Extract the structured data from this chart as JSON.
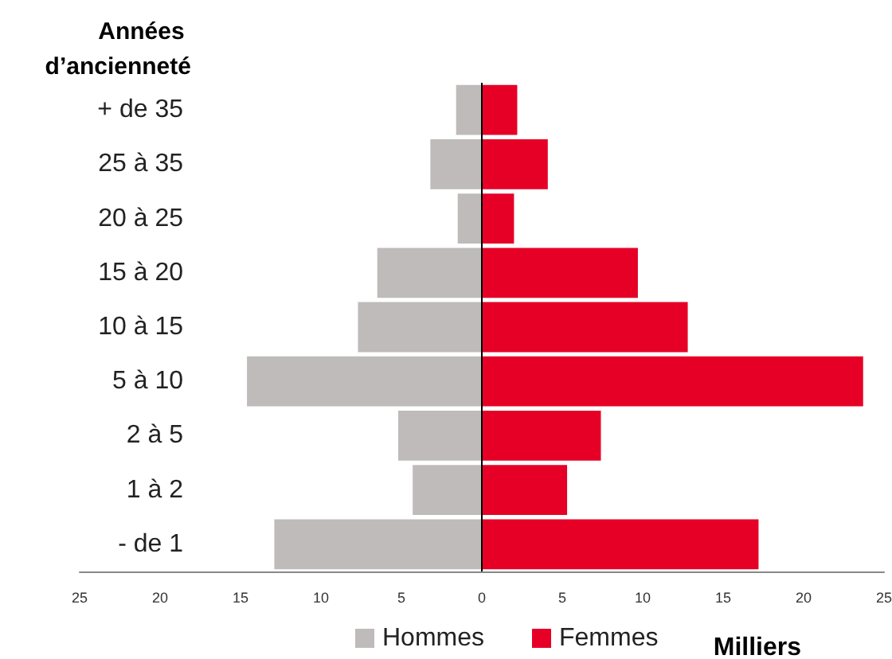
{
  "chart_data": {
    "type": "bar",
    "orientation": "horizontal",
    "ylabel": "Années d’ancienneté",
    "xlabel": "Milliers",
    "categories": [
      "+ de 35",
      "25 à 35",
      "20 à 25",
      "15 à 20",
      "10 à 15",
      "5 à 10",
      "2 à 5",
      "1 à 2",
      "- de 1"
    ],
    "series": [
      {
        "name": "Hommes",
        "color": "#bfbbbb",
        "values": [
          -1.6,
          -3.2,
          -1.5,
          -6.5,
          -7.7,
          -14.6,
          -5.2,
          -4.3,
          -12.9
        ]
      },
      {
        "name": "Femmes",
        "color": "#e60026",
        "values": [
          2.2,
          4.1,
          2.0,
          9.7,
          12.8,
          23.7,
          7.4,
          5.3,
          17.2
        ]
      }
    ],
    "xlim": [
      -25,
      25
    ],
    "xticks": [
      {
        "value": -25,
        "label": "25"
      },
      {
        "value": -20,
        "label": "20"
      },
      {
        "value": -15,
        "label": "15"
      },
      {
        "value": -10,
        "label": "10"
      },
      {
        "value": -5,
        "label": "5"
      },
      0,
      5,
      10,
      15,
      20,
      25
    ],
    "stacked": true,
    "grid": false,
    "legend": "bottom",
    "ref_lines": [
      {
        "axis": "x",
        "value": 0,
        "color": "#000000"
      }
    ]
  }
}
